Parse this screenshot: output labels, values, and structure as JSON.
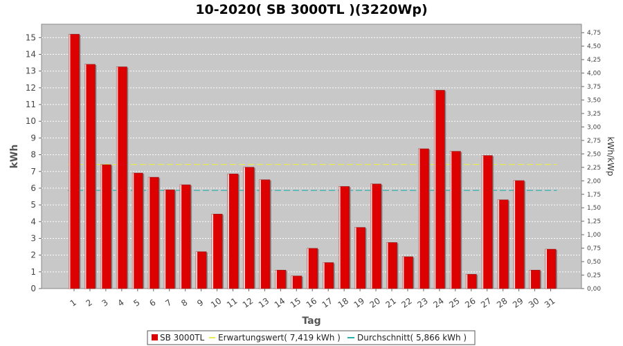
{
  "chart_data": {
    "type": "bar",
    "title": "10-2020( SB 3000TL )(3220Wp)",
    "xlabel": "Tag",
    "ylabel": "kWh",
    "ylabel_right": "kWh/kWp",
    "ylim": [
      0,
      15.8
    ],
    "ylim_right": [
      0,
      4.907
    ],
    "yticks": [
      0,
      1,
      2,
      3,
      4,
      5,
      6,
      7,
      8,
      9,
      10,
      11,
      12,
      13,
      14,
      15
    ],
    "yticks_right": [
      "0,00",
      "0,25",
      "0,50",
      "0,75",
      "1,00",
      "1,25",
      "1,50",
      "1,75",
      "2,00",
      "2,25",
      "2,50",
      "2,75",
      "3,00",
      "3,25",
      "3,50",
      "3,75",
      "4,00",
      "4,25",
      "4,50",
      "4,75"
    ],
    "categories": [
      "1",
      "2",
      "3",
      "4",
      "5",
      "6",
      "7",
      "8",
      "9",
      "10",
      "11",
      "12",
      "13",
      "14",
      "15",
      "16",
      "17",
      "18",
      "19",
      "20",
      "21",
      "22",
      "23",
      "24",
      "25",
      "26",
      "27",
      "28",
      "29",
      "30",
      "31"
    ],
    "series": [
      {
        "name": "SB 3000TL",
        "color": "#dd0000",
        "values": [
          15.2,
          13.4,
          7.4,
          13.25,
          6.9,
          6.65,
          5.9,
          6.2,
          2.2,
          4.45,
          6.85,
          7.25,
          6.5,
          1.1,
          0.75,
          2.4,
          1.55,
          6.1,
          3.65,
          6.25,
          2.75,
          1.9,
          8.35,
          11.85,
          8.2,
          0.85,
          7.95,
          5.3,
          6.45,
          1.1,
          2.35
        ]
      }
    ],
    "reference_lines": [
      {
        "name": "Erwartungswert( 7,419 kWh )",
        "value": 7.419,
        "color": "#e8e850"
      },
      {
        "name": "Durchschnitt( 5,866 kWh )",
        "value": 5.866,
        "color": "#20b0b0"
      }
    ],
    "grid": true,
    "legend_position": "bottom-center",
    "plot_background": "#c8c8c8"
  }
}
